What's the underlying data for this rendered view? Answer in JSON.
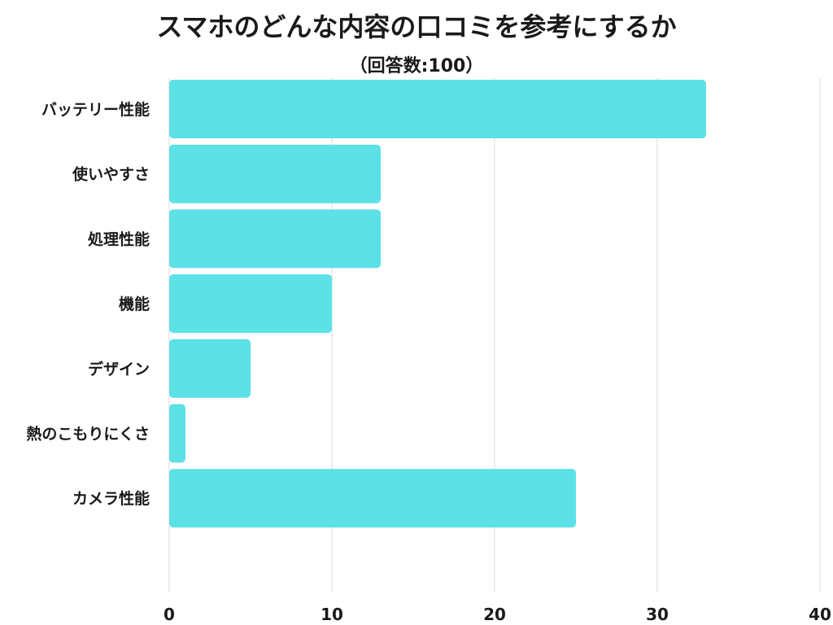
{
  "chart_data": {
    "type": "bar",
    "orientation": "horizontal",
    "title": "スマホのどんな内容の口コミを参考にするか",
    "subtitle": "（回答数:100）",
    "categories": [
      "バッテリー性能",
      "使いやすさ",
      "処理性能",
      "機能",
      "デザイン",
      "熱のこもりにくさ",
      "カメラ性能"
    ],
    "values": [
      33,
      13,
      13,
      10,
      5,
      1,
      25
    ],
    "xlim": [
      0,
      40
    ],
    "xticks": [
      0,
      10,
      20,
      30,
      40
    ],
    "grid": true,
    "bar_color": "#5ce1e6",
    "grid_color": "#d9d9d9",
    "text_color": "#1a1a1a"
  }
}
